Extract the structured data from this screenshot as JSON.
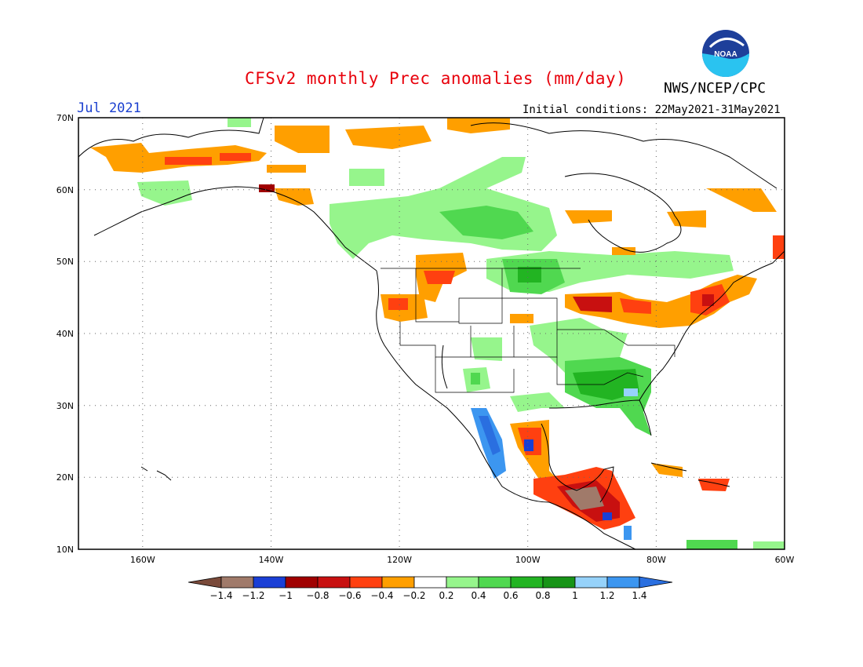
{
  "header": {
    "title": "CFSv2 monthly Prec anomalies (mm/day)",
    "organization": "NWS/NCEP/CPC",
    "logo_text": "NOAA",
    "month": "Jul 2021",
    "initial_conditions": "Initial conditions: 22May2021-31May2021"
  },
  "axes": {
    "lat_labels": [
      "70N",
      "60N",
      "50N",
      "40N",
      "30N",
      "20N",
      "10N"
    ],
    "lon_labels": [
      "160W",
      "140W",
      "120W",
      "100W",
      "80W",
      "60W"
    ]
  },
  "colorbar": {
    "labels": [
      "-1.4",
      "-1.2",
      "-1",
      "-0.8",
      "-0.6",
      "-0.4",
      "-0.2",
      "0.2",
      "0.4",
      "0.6",
      "0.8",
      "1",
      "1.2",
      "1.4"
    ],
    "colors": [
      "#7a4a3a",
      "#a07a6a",
      "#1a3fd6",
      "#a00000",
      "#c81010",
      "#ff4010",
      "#ff9f00",
      "#ffffff",
      "#96f58c",
      "#50d850",
      "#22b422",
      "#179417",
      "#96d2fa",
      "#3c96f0",
      "#2a6fe0"
    ]
  },
  "anomaly_regions": [
    {
      "name": "alaska-north",
      "color": "#ff9f00"
    },
    {
      "name": "alaska-deep",
      "color": "#ff4010"
    },
    {
      "name": "canada-green",
      "color": "#96f58c"
    },
    {
      "name": "plains-green",
      "color": "#50d850"
    },
    {
      "name": "great-lakes-red",
      "color": "#c81010"
    },
    {
      "name": "pacific-nw-orange",
      "color": "#ff9f00"
    },
    {
      "name": "southeast-green",
      "color": "#22b422"
    },
    {
      "name": "mexico-blue",
      "color": "#3c96f0"
    },
    {
      "name": "central-america-brown",
      "color": "#a07a6a"
    }
  ]
}
